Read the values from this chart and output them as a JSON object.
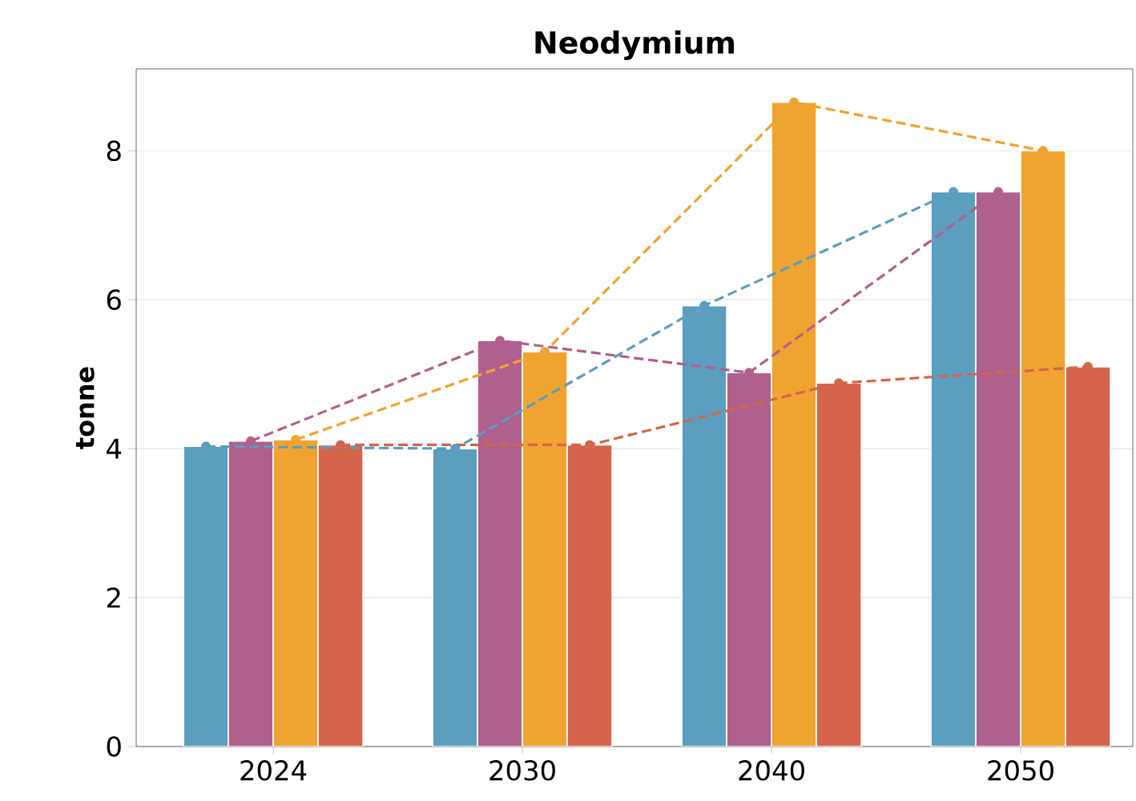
{
  "chart_data": {
    "type": "bar",
    "title": "Neodymium",
    "ylabel": "tonne",
    "categories": [
      "2024",
      "2030",
      "2040",
      "2050"
    ],
    "series": [
      {
        "color": "#5b9ebf",
        "values": [
          4.03,
          4.0,
          5.92,
          7.45
        ]
      },
      {
        "color": "#b0608c",
        "values": [
          4.1,
          5.45,
          5.02,
          7.45
        ]
      },
      {
        "color": "#f0a330",
        "values": [
          4.12,
          5.3,
          8.65,
          8.0
        ]
      },
      {
        "color": "#d4654a",
        "values": [
          4.05,
          4.05,
          4.88,
          5.1
        ]
      },
      {
        "type": "line",
        "color": "#5b9ebf",
        "values": [
          4.03,
          4.0,
          5.92,
          7.45
        ],
        "line_style": "dashed",
        "marker": "circle"
      },
      {
        "type": "line",
        "color": "#b0608c",
        "values": [
          4.1,
          5.45,
          5.02,
          7.45
        ],
        "line_style": "dashed",
        "marker": "circle"
      },
      {
        "type": "line",
        "color": "#f0a330",
        "values": [
          4.12,
          5.3,
          8.65,
          8.0
        ],
        "line_style": "dashed",
        "marker": "circle"
      },
      {
        "type": "line",
        "color": "#d4654a",
        "values": [
          4.05,
          4.05,
          4.88,
          5.1
        ],
        "line_style": "dashed",
        "marker": "circle"
      }
    ],
    "ylim": [
      0,
      9.1
    ],
    "yticks": [
      0,
      2,
      4,
      6,
      8
    ],
    "grid": "y"
  }
}
